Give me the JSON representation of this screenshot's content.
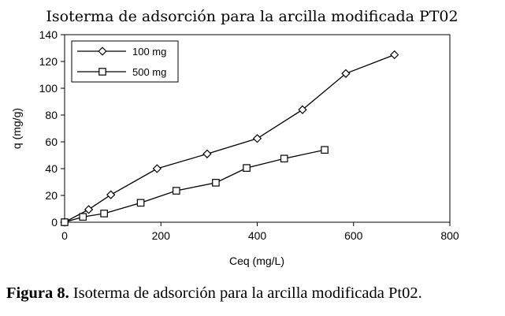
{
  "caption": {
    "label": "Figura 8.",
    "text": "Isoterma de adsorción para la arcilla modificada Pt02."
  },
  "chart_data": {
    "type": "line",
    "title": "Isoterma de adsorción para la arcilla modificada PT02",
    "xlabel": "Ceq (mg/L)",
    "ylabel": "q (mg/g)",
    "xlim": [
      0,
      800
    ],
    "ylim": [
      0,
      140
    ],
    "xticks": [
      0,
      200,
      400,
      600,
      800
    ],
    "yticks": [
      0,
      20,
      40,
      60,
      80,
      100,
      120,
      140
    ],
    "grid": false,
    "legend_position": "top-left",
    "series": [
      {
        "name": "100 mg",
        "marker": "diamond",
        "color": "#000000",
        "points": [
          [
            0,
            0
          ],
          [
            50,
            9.5
          ],
          [
            96,
            20.5
          ],
          [
            192,
            40
          ],
          [
            296,
            51
          ],
          [
            400,
            62.5
          ],
          [
            494,
            84
          ],
          [
            584,
            111
          ],
          [
            685,
            125
          ]
        ]
      },
      {
        "name": "500 mg",
        "marker": "square",
        "color": "#000000",
        "points": [
          [
            0,
            0
          ],
          [
            38,
            4
          ],
          [
            82,
            6.5
          ],
          [
            158,
            14.5
          ],
          [
            232,
            23.5
          ],
          [
            314,
            29.5
          ],
          [
            378,
            40.5
          ],
          [
            456,
            47.5
          ],
          [
            540,
            54
          ]
        ]
      }
    ]
  }
}
